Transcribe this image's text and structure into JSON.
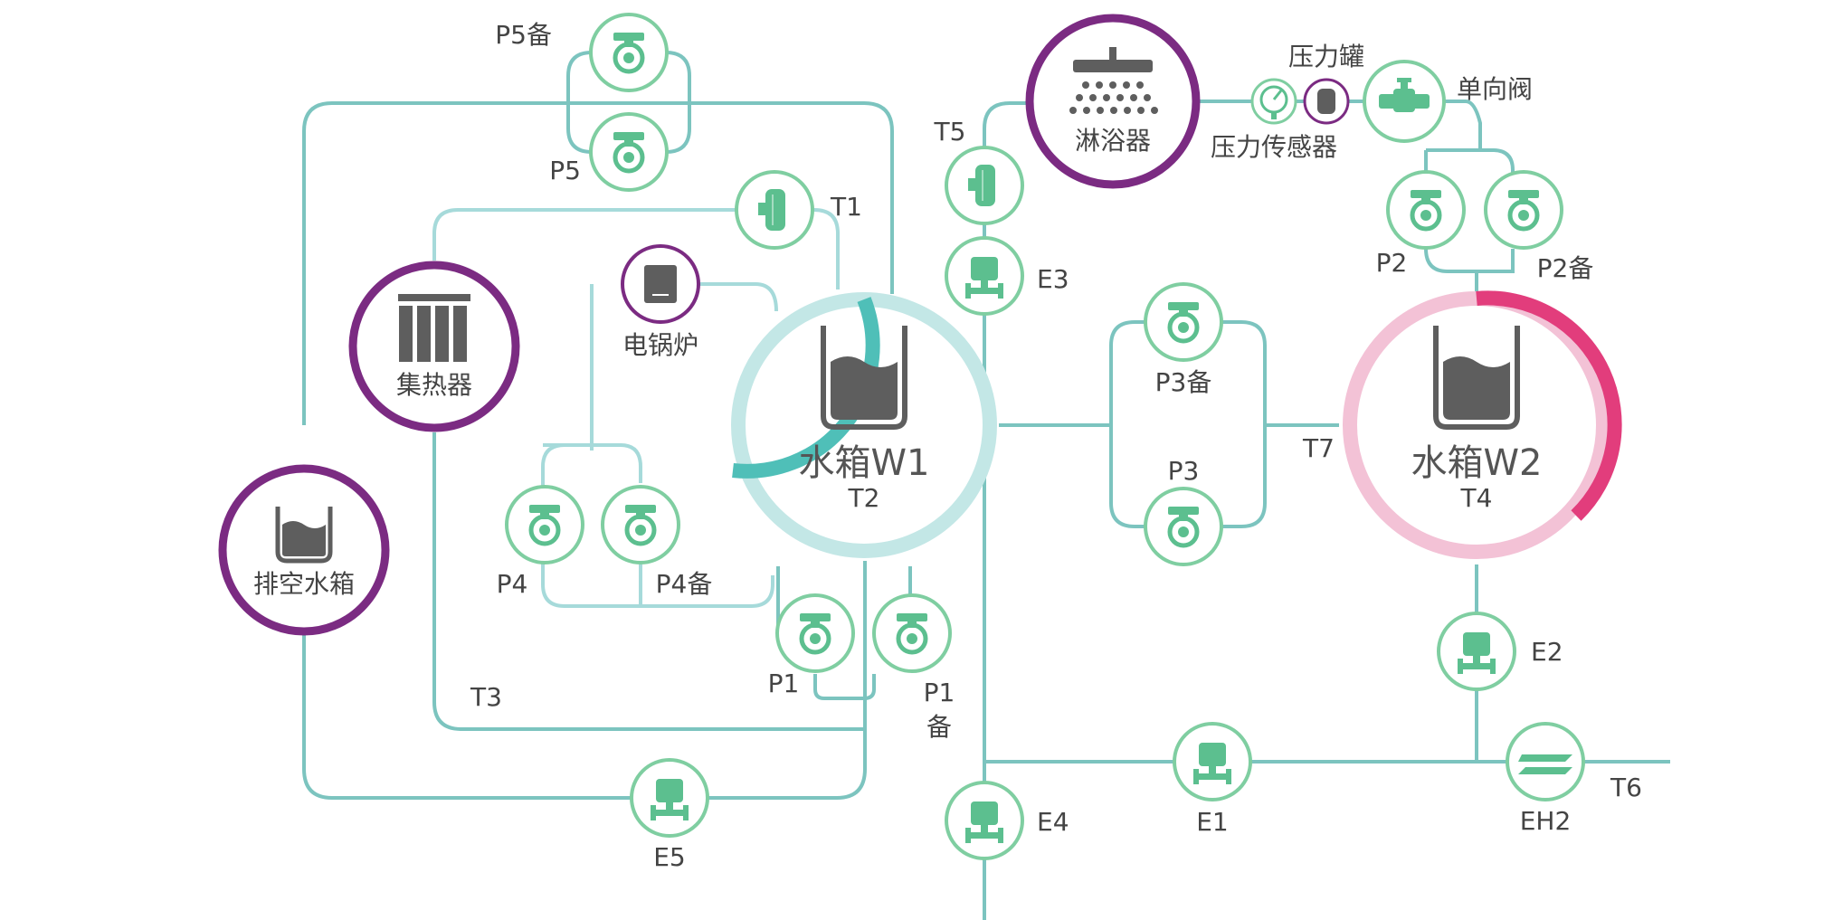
{
  "colors": {
    "pipe": "#7cc4bf",
    "pipe_light": "#a6dada",
    "node_ring": "#7fcea1",
    "node_icon": "#5cbf8f",
    "purple": "#7b2b82",
    "tank1_ring": "#4fbfb8",
    "tank1_ring_light": "#c3e7e6",
    "tank2_ring": "#e23d7c",
    "tank2_ring_light": "#f3c2d6",
    "gray": "#5e5e5e"
  },
  "tanks": {
    "w1": {
      "name": "水箱W1",
      "sensor": "T2",
      "icon": "water-tank-icon"
    },
    "w2": {
      "name": "水箱W2",
      "sensor": "T4",
      "icon": "water-tank-icon"
    }
  },
  "components": {
    "collector": "集热器",
    "drain_tank": "排空水箱",
    "boiler": "电锅炉",
    "shower": "淋浴器",
    "pressure_tank": "压力罐",
    "pressure_sensor": "压力传感器",
    "check_valve": "单向阀"
  },
  "labels": {
    "P5b": "P5备",
    "P5": "P5",
    "T1": "T1",
    "T5": "T5",
    "E3": "E3",
    "P2": "P2",
    "P2b": "P2备",
    "P3b": "P3备",
    "P3": "P3",
    "T7": "T7",
    "P4": "P4",
    "P4b": "P4备",
    "P1": "P1",
    "P1b_line1": "P1",
    "P1b_line2": "备",
    "T3": "T3",
    "E5": "E5",
    "E4": "E4",
    "E1": "E1",
    "E2": "E2",
    "EH2": "EH2",
    "T6": "T6"
  }
}
